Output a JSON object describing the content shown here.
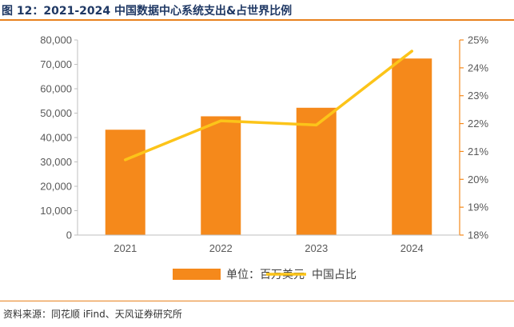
{
  "figure": {
    "title": "图 12：2021-2024 中国数据中心系统支出&占世界比例",
    "source": "资料来源：同花顺 iFind、天风证券研究所"
  },
  "colors": {
    "bar": "#f5891b",
    "line": "#fcc419",
    "right_axis": "#f5891b",
    "title": "#1f3864",
    "accent_rule": "#e8821e"
  },
  "chart_data": {
    "type": "bar",
    "categories": [
      "2021",
      "2022",
      "2023",
      "2024"
    ],
    "series": [
      {
        "name": "单位：百万美元",
        "type": "bar",
        "axis": "left",
        "values": [
          43200,
          48700,
          52200,
          72400
        ]
      },
      {
        "name": "中国占比",
        "type": "line",
        "axis": "right",
        "values": [
          20.7,
          22.1,
          21.95,
          24.6
        ]
      }
    ],
    "ylim": [
      0,
      80000
    ],
    "y_ticks": [
      "0",
      "10,000",
      "20,000",
      "30,000",
      "40,000",
      "50,000",
      "60,000",
      "70,000",
      "80,000"
    ],
    "y2lim": [
      18,
      25
    ],
    "y2_ticks": [
      "18%",
      "19%",
      "20%",
      "21%",
      "22%",
      "23%",
      "24%",
      "25%"
    ],
    "grid": false,
    "legend_position": "bottom"
  }
}
